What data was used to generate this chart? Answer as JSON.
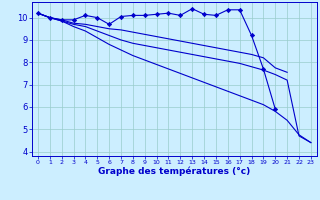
{
  "x": [
    0,
    1,
    2,
    3,
    4,
    5,
    6,
    7,
    8,
    9,
    10,
    11,
    12,
    13,
    14,
    15,
    16,
    17,
    18,
    19,
    20,
    21,
    22,
    23
  ],
  "line1": [
    10.2,
    10.0,
    9.9,
    9.9,
    10.1,
    10.0,
    9.7,
    10.05,
    10.1,
    10.1,
    10.15,
    10.2,
    10.1,
    10.4,
    10.15,
    10.1,
    10.35,
    10.35,
    9.2,
    7.7,
    5.9,
    null,
    null,
    null
  ],
  "line2": [
    10.2,
    10.0,
    9.9,
    9.75,
    9.7,
    9.6,
    9.5,
    9.45,
    9.35,
    9.25,
    9.15,
    9.05,
    8.95,
    8.85,
    8.75,
    8.65,
    8.55,
    8.45,
    8.35,
    8.2,
    7.75,
    7.55,
    null,
    null
  ],
  "line3": [
    10.2,
    10.0,
    9.85,
    9.7,
    9.6,
    9.4,
    9.2,
    9.0,
    8.85,
    8.75,
    8.65,
    8.55,
    8.45,
    8.35,
    8.25,
    8.15,
    8.05,
    7.95,
    7.8,
    7.65,
    7.45,
    7.2,
    4.7,
    4.4
  ],
  "line4": [
    10.2,
    10.0,
    9.85,
    9.6,
    9.4,
    9.1,
    8.8,
    8.55,
    8.3,
    8.1,
    7.9,
    7.7,
    7.5,
    7.3,
    7.1,
    6.9,
    6.7,
    6.5,
    6.3,
    6.1,
    5.8,
    5.4,
    4.75,
    4.4
  ],
  "ylim_min": 3.8,
  "ylim_max": 10.7,
  "xlim_min": -0.5,
  "xlim_max": 23.5,
  "yticks": [
    4,
    5,
    6,
    7,
    8,
    9,
    10
  ],
  "xtick_labels": [
    "0",
    "1",
    "2",
    "3",
    "4",
    "5",
    "6",
    "7",
    "8",
    "9",
    "10",
    "11",
    "12",
    "13",
    "14",
    "15",
    "16",
    "17",
    "18",
    "19",
    "20",
    "21",
    "22",
    "23"
  ],
  "xlabel": "Graphe des températures (°c)",
  "line_color": "#0000cc",
  "bg_color": "#cceeff",
  "grid_color": "#99cccc"
}
